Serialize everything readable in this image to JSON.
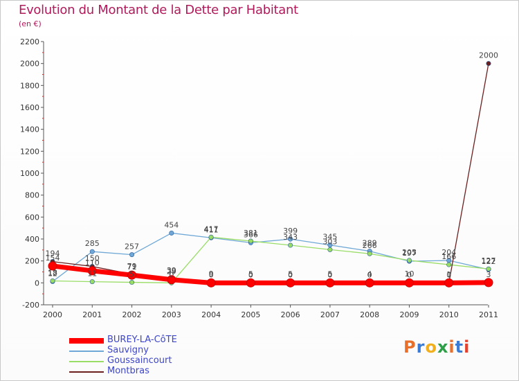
{
  "title": "Evolution du Montant de la Dette par Habitant",
  "subtitle": "(en €)",
  "logo": "Proxiti",
  "chart_data": {
    "type": "line",
    "title": "Evolution du Montant de la Dette par Habitant",
    "ylabel": "(en €)",
    "xlabel": "",
    "ylim": [
      -200,
      2200
    ],
    "yticks": [
      -200,
      0,
      200,
      400,
      600,
      800,
      1000,
      1200,
      1400,
      1600,
      1800,
      2000,
      2200
    ],
    "categories": [
      "2000",
      "2001",
      "2002",
      "2003",
      "2004",
      "2005",
      "2006",
      "2007",
      "2008",
      "2009",
      "2010",
      "2011"
    ],
    "grid": false,
    "legend": "bottom-left",
    "series": [
      {
        "name": "BUREY-LA-CôTE",
        "color": "#ff0000",
        "values": [
          154,
          110,
          71,
          29,
          0,
          0,
          0,
          0,
          0,
          0,
          0,
          3
        ]
      },
      {
        "name": "Sauvigny",
        "color": "#6fa8d6",
        "values": [
          12,
          285,
          257,
          454,
          411,
          366,
          399,
          345,
          289,
          197,
          204,
          122
        ]
      },
      {
        "name": "Goussaincourt",
        "color": "#99dd66",
        "values": [
          18,
          11,
          5,
          0,
          417,
          381,
          343,
          303,
          266,
          205,
          166,
          127
        ]
      },
      {
        "name": "Montbras",
        "color": "#6b1f1f",
        "values": [
          194,
          150,
          79,
          39,
          9,
          5,
          5,
          5,
          4,
          10,
          1,
          2000
        ]
      }
    ]
  }
}
